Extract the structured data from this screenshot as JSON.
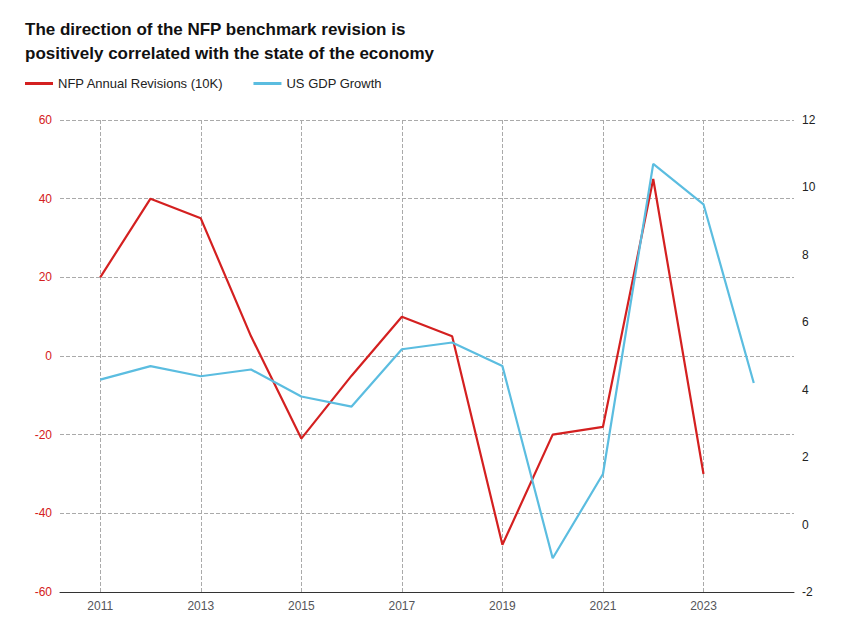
{
  "chart_data": {
    "type": "line",
    "title": "The direction of the NFP benchmark revision is\npositively correlated with the state of the economy",
    "x": [
      2011,
      2012,
      2013,
      2014,
      2015,
      2016,
      2017,
      2018,
      2019,
      2020,
      2021,
      2022,
      2023,
      2024
    ],
    "series": [
      {
        "name": "NFP Annual Revisions (10K)",
        "color": "#d42020",
        "values": [
          20,
          40,
          35,
          5,
          -21,
          -5,
          10,
          5,
          -48,
          -20,
          -18,
          45,
          -30,
          null
        ]
      },
      {
        "name": "US GDP Growth",
        "color": "#5bbde0",
        "axis": "y2",
        "values": [
          4.3,
          4.7,
          4.4,
          4.6,
          3.8,
          3.5,
          5.2,
          5.4,
          4.7,
          -1.0,
          1.5,
          10.7,
          9.5,
          4.2
        ]
      }
    ],
    "xlim": [
      2010.2,
      2024.8
    ],
    "xticks": [
      2011,
      2013,
      2015,
      2017,
      2019,
      2021,
      2023
    ],
    "ylim": [
      -60,
      60
    ],
    "yticks": [
      -60,
      -40,
      -20,
      0,
      20,
      40,
      60
    ],
    "y2lim": [
      -2,
      12
    ],
    "y2ticks": [
      -2,
      0,
      2,
      4,
      6,
      8,
      10,
      12
    ],
    "grid": true,
    "legend": "upper left"
  }
}
